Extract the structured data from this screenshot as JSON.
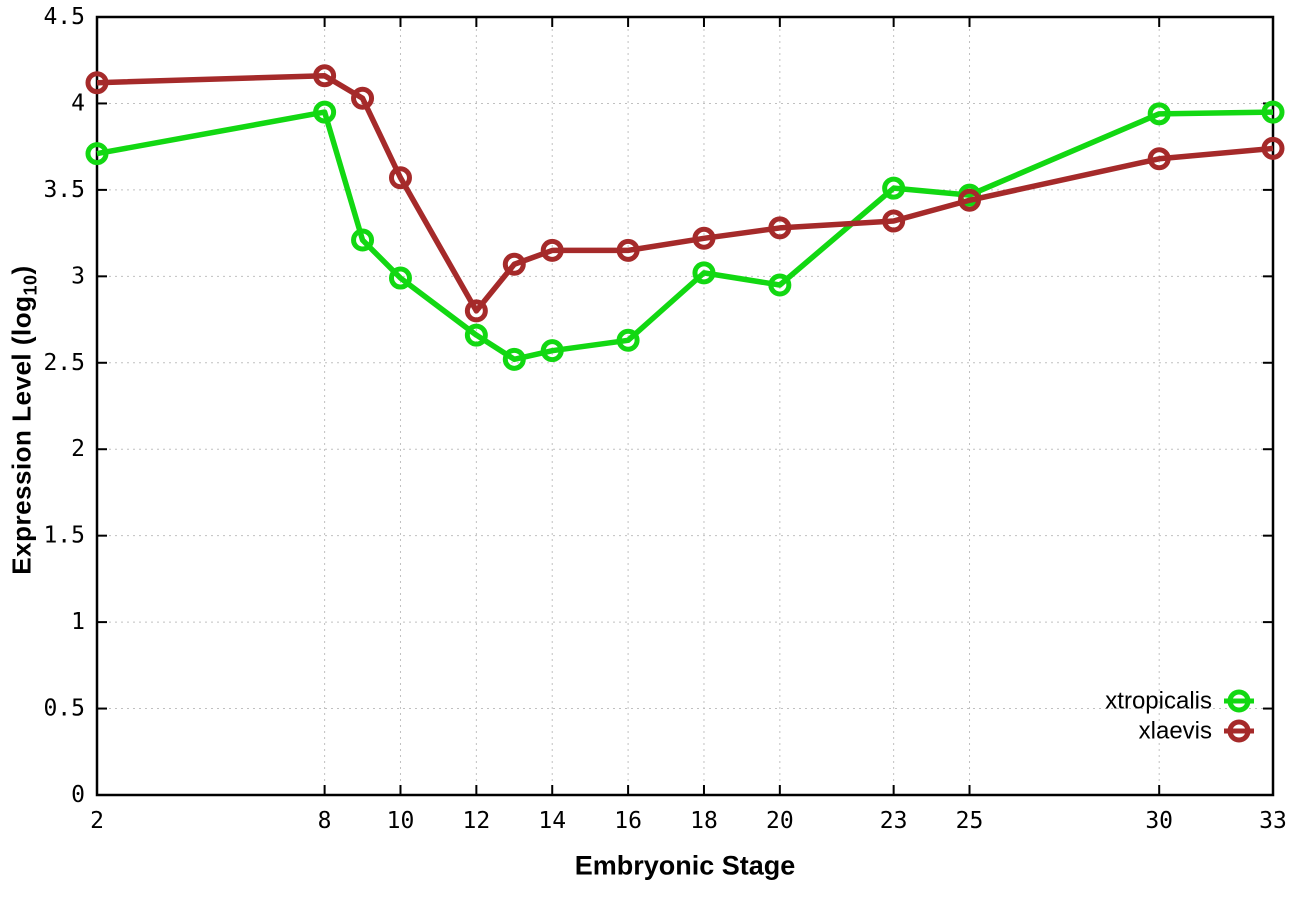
{
  "chart_data": {
    "type": "line",
    "title": "",
    "xlabel": "Embryonic Stage",
    "ylabel": "Expression Level (log10)",
    "ylabel_parts": {
      "prefix": "Expression Level (log",
      "sub": "10",
      "suffix": ")"
    },
    "xlim": [
      2,
      33
    ],
    "ylim": [
      0,
      4.5
    ],
    "grid": true,
    "legend_position": "bottom-right",
    "x_ticks": [
      {
        "v": 2,
        "label": "2"
      },
      {
        "v": 8,
        "label": "8"
      },
      {
        "v": 10,
        "label": "10"
      },
      {
        "v": 12,
        "label": "12"
      },
      {
        "v": 14,
        "label": "14"
      },
      {
        "v": 16,
        "label": "16"
      },
      {
        "v": 18,
        "label": "18"
      },
      {
        "v": 20,
        "label": "20"
      },
      {
        "v": 23,
        "label": "23"
      },
      {
        "v": 25,
        "label": "25"
      },
      {
        "v": 30,
        "label": "30"
      },
      {
        "v": 33,
        "label": "33"
      }
    ],
    "y_ticks": [
      {
        "v": 0,
        "label": "0"
      },
      {
        "v": 0.5,
        "label": "0.5"
      },
      {
        "v": 1,
        "label": "1"
      },
      {
        "v": 1.5,
        "label": "1.5"
      },
      {
        "v": 2,
        "label": "2"
      },
      {
        "v": 2.5,
        "label": "2.5"
      },
      {
        "v": 3,
        "label": "3"
      },
      {
        "v": 3.5,
        "label": "3.5"
      },
      {
        "v": 4,
        "label": "4"
      },
      {
        "v": 4.5,
        "label": "4.5"
      }
    ],
    "x": [
      2,
      8,
      9,
      10,
      12,
      13,
      14,
      16,
      18,
      20,
      23,
      25,
      30,
      33
    ],
    "series": [
      {
        "name": "xtropicalis",
        "color": "#12d812",
        "marker": "open-circle",
        "values": [
          3.71,
          3.95,
          3.21,
          2.99,
          2.66,
          2.52,
          2.57,
          2.63,
          3.02,
          2.95,
          3.51,
          3.47,
          3.94,
          3.95
        ]
      },
      {
        "name": "xlaevis",
        "color": "#a52a2a",
        "marker": "open-circle",
        "values": [
          4.12,
          4.16,
          4.03,
          3.57,
          2.8,
          3.07,
          3.15,
          3.15,
          3.22,
          3.28,
          3.32,
          3.44,
          3.68,
          3.74
        ]
      }
    ]
  },
  "style_colors": {
    "background": "#ffffff",
    "axis": "#000000",
    "grid": "#c0c0c0",
    "text": "#000000"
  }
}
